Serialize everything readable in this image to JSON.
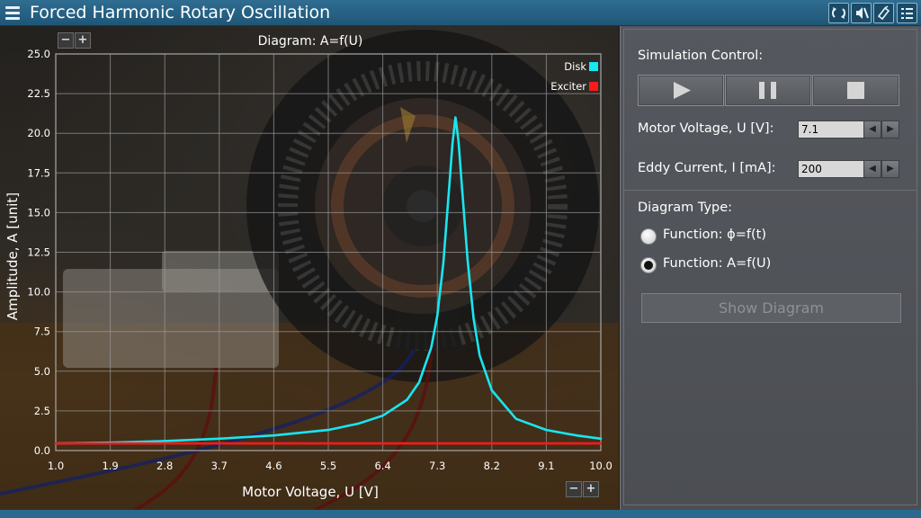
{
  "app": {
    "title": "Forced Harmonic Rotary Oscillation"
  },
  "toolbar": {
    "icons": [
      "refresh-icon",
      "sound-mute-icon",
      "info-icon",
      "settings-list-icon"
    ]
  },
  "chart_zoom": {
    "minus": "−",
    "plus": "+"
  },
  "chart_data": {
    "type": "line",
    "title": "Diagram: A=f(U)",
    "xlabel": "Motor Voltage, U [V]",
    "ylabel": "Amplitude, A [unit]",
    "xlim": [
      1.0,
      10.0
    ],
    "ylim": [
      0,
      25.0
    ],
    "x_ticks": [
      "1.0",
      "1.9",
      "2.8",
      "3.7",
      "4.6",
      "5.5",
      "6.4",
      "7.3",
      "8.2",
      "9.1",
      "10.0"
    ],
    "y_ticks": [
      "0.0",
      "2.5",
      "5.0",
      "7.5",
      "10.0",
      "12.5",
      "15.0",
      "17.5",
      "20.0",
      "22.5",
      "25.0"
    ],
    "grid": true,
    "legend_position": "top-right",
    "series": [
      {
        "name": "Disk",
        "color": "#18e6f0",
        "x": [
          1.0,
          1.9,
          2.8,
          3.7,
          4.6,
          5.5,
          6.0,
          6.4,
          6.8,
          7.0,
          7.2,
          7.3,
          7.4,
          7.5,
          7.55,
          7.6,
          7.65,
          7.7,
          7.8,
          7.9,
          8.0,
          8.2,
          8.6,
          9.1,
          9.6,
          10.0
        ],
        "y": [
          0.45,
          0.5,
          0.6,
          0.75,
          0.95,
          1.3,
          1.7,
          2.2,
          3.2,
          4.3,
          6.5,
          8.5,
          11.8,
          16.8,
          19.3,
          21.0,
          19.5,
          17.0,
          12.0,
          8.3,
          6.0,
          3.8,
          2.0,
          1.3,
          0.95,
          0.75
        ]
      },
      {
        "name": "Exciter",
        "color": "#ff1a1a",
        "x": [
          1.0,
          10.0
        ],
        "y": [
          0.45,
          0.45
        ]
      }
    ]
  },
  "panel": {
    "simulation_control_label": "Simulation Control:",
    "motor_voltage_label": "Motor Voltage, U [V]:",
    "motor_voltage_value": "7.1",
    "eddy_current_label": "Eddy Current, I [mA]:",
    "eddy_current_value": "200",
    "diagram_type_label": "Diagram Type:",
    "radio_options": [
      {
        "label": "Function: ϕ=f(t)",
        "checked": false
      },
      {
        "label": "Function: A=f(U)",
        "checked": true
      }
    ],
    "show_diagram_label": "Show Diagram"
  }
}
